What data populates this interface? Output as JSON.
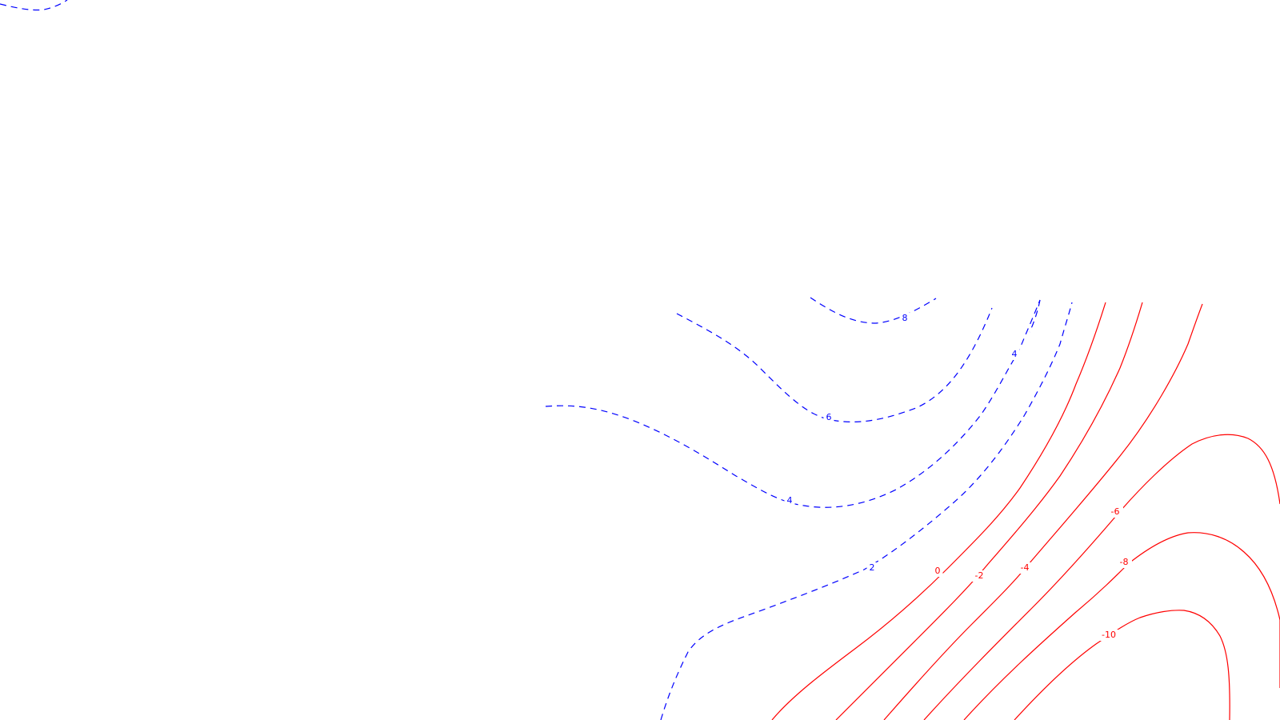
{
  "chart_data": {
    "type": "contour",
    "title": "",
    "xlabel": "",
    "ylabel": "",
    "grid": false,
    "positive_color": "#0000ff",
    "negative_color": "#ff0000",
    "positive_style": "dashed",
    "negative_style": "solid",
    "levels": [
      {
        "value": 8,
        "label": "8",
        "sign": "positive"
      },
      {
        "value": 6,
        "label": "6",
        "sign": "positive"
      },
      {
        "value": 4,
        "label": "4",
        "sign": "positive"
      },
      {
        "value": 4,
        "label": "4",
        "sign": "positive"
      },
      {
        "value": 2,
        "label": "2",
        "sign": "positive"
      },
      {
        "value": 0,
        "label": "0",
        "sign": "negative"
      },
      {
        "value": -2,
        "label": "-2",
        "sign": "negative"
      },
      {
        "value": -4,
        "label": "-4",
        "sign": "negative"
      },
      {
        "value": -6,
        "label": "-6",
        "sign": "negative"
      },
      {
        "value": -8,
        "label": "-8",
        "sign": "negative"
      },
      {
        "value": -10,
        "label": "-10",
        "sign": "negative"
      }
    ]
  }
}
